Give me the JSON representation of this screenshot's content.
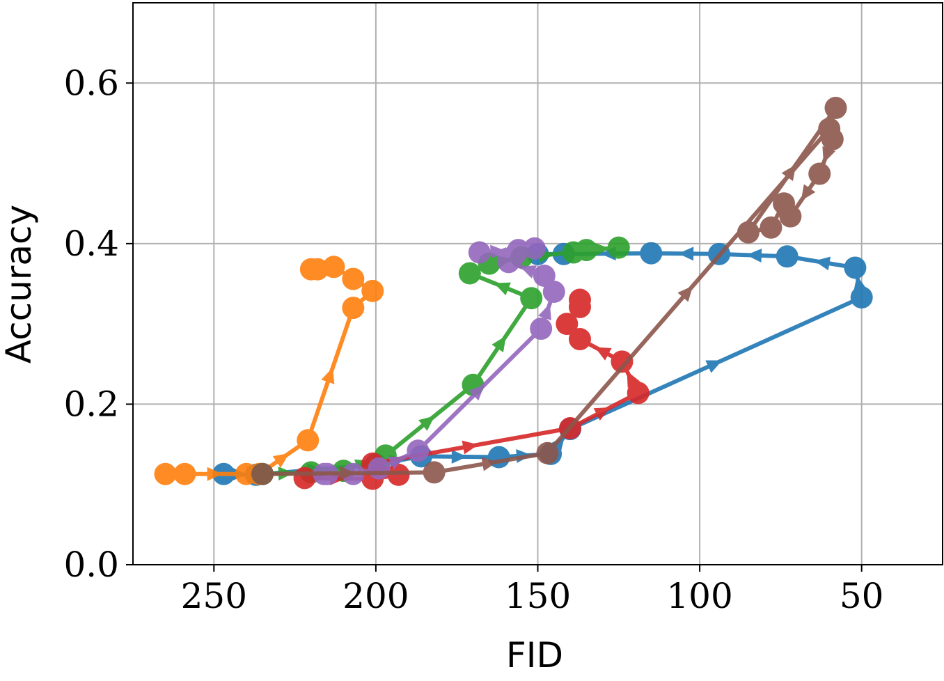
{
  "chart_data": {
    "type": "line",
    "xlabel": "FID",
    "ylabel": "Accuracy",
    "x_inverted": true,
    "xlim": [
      275,
      25
    ],
    "ylim": [
      0,
      0.7
    ],
    "xticks": [
      250,
      200,
      150,
      100,
      50
    ],
    "xtick_labels": [
      "250",
      "200",
      "150",
      "100",
      "50"
    ],
    "yticks": [
      0.0,
      0.2,
      0.4,
      0.6
    ],
    "ytick_labels": [
      "0.0",
      "0.2",
      "0.4",
      "0.6"
    ],
    "grid": true,
    "series": [
      {
        "color": "#1f77b4",
        "points": [
          [
            247,
            0.113
          ],
          [
            237,
            0.112
          ],
          [
            200,
            0.125
          ],
          [
            186,
            0.135
          ],
          [
            162,
            0.134
          ],
          [
            146,
            0.138
          ],
          [
            140,
            0.169
          ],
          [
            50,
            0.333
          ],
          [
            52,
            0.37
          ],
          [
            73,
            0.384
          ],
          [
            94,
            0.387
          ],
          [
            115,
            0.388
          ],
          [
            142,
            0.387
          ],
          [
            150,
            0.387
          ]
        ]
      },
      {
        "color": "#ff7f0e",
        "points": [
          [
            265,
            0.113
          ],
          [
            259,
            0.113
          ],
          [
            240,
            0.113
          ],
          [
            236,
            0.113
          ],
          [
            221,
            0.155
          ],
          [
            207,
            0.32
          ],
          [
            201,
            0.341
          ],
          [
            207,
            0.356
          ],
          [
            213,
            0.371
          ],
          [
            218,
            0.368
          ],
          [
            220,
            0.368
          ]
        ]
      },
      {
        "color": "#2ca02c",
        "points": [
          [
            235,
            0.113
          ],
          [
            220,
            0.115
          ],
          [
            210,
            0.117
          ],
          [
            197,
            0.136
          ],
          [
            170,
            0.224
          ],
          [
            152,
            0.332
          ],
          [
            171,
            0.363
          ],
          [
            165,
            0.375
          ],
          [
            155,
            0.383
          ],
          [
            139,
            0.389
          ],
          [
            135,
            0.392
          ],
          [
            125,
            0.395
          ]
        ]
      },
      {
        "color": "#d62728",
        "points": [
          [
            222,
            0.108
          ],
          [
            201,
            0.107
          ],
          [
            193,
            0.112
          ],
          [
            201,
            0.126
          ],
          [
            140,
            0.17
          ],
          [
            119,
            0.214
          ],
          [
            124,
            0.253
          ],
          [
            137,
            0.281
          ],
          [
            141,
            0.3
          ],
          [
            137,
            0.321
          ],
          [
            137,
            0.33
          ]
        ]
      },
      {
        "color": "#9467bd",
        "points": [
          [
            216,
            0.113
          ],
          [
            215,
            0.113
          ],
          [
            207,
            0.113
          ],
          [
            199,
            0.12
          ],
          [
            187,
            0.142
          ],
          [
            149,
            0.294
          ],
          [
            145,
            0.34
          ],
          [
            148,
            0.36
          ],
          [
            159,
            0.377
          ],
          [
            157,
            0.386
          ],
          [
            168,
            0.389
          ],
          [
            156,
            0.392
          ],
          [
            151,
            0.394
          ]
        ]
      },
      {
        "color": "#8c564b",
        "points": [
          [
            235,
            0.113
          ],
          [
            182,
            0.115
          ],
          [
            147,
            0.139
          ],
          [
            60,
            0.543
          ],
          [
            59,
            0.53
          ],
          [
            63,
            0.487
          ],
          [
            72,
            0.434
          ],
          [
            74,
            0.45
          ],
          [
            78,
            0.42
          ],
          [
            85,
            0.414
          ],
          [
            58,
            0.569
          ]
        ]
      }
    ]
  }
}
